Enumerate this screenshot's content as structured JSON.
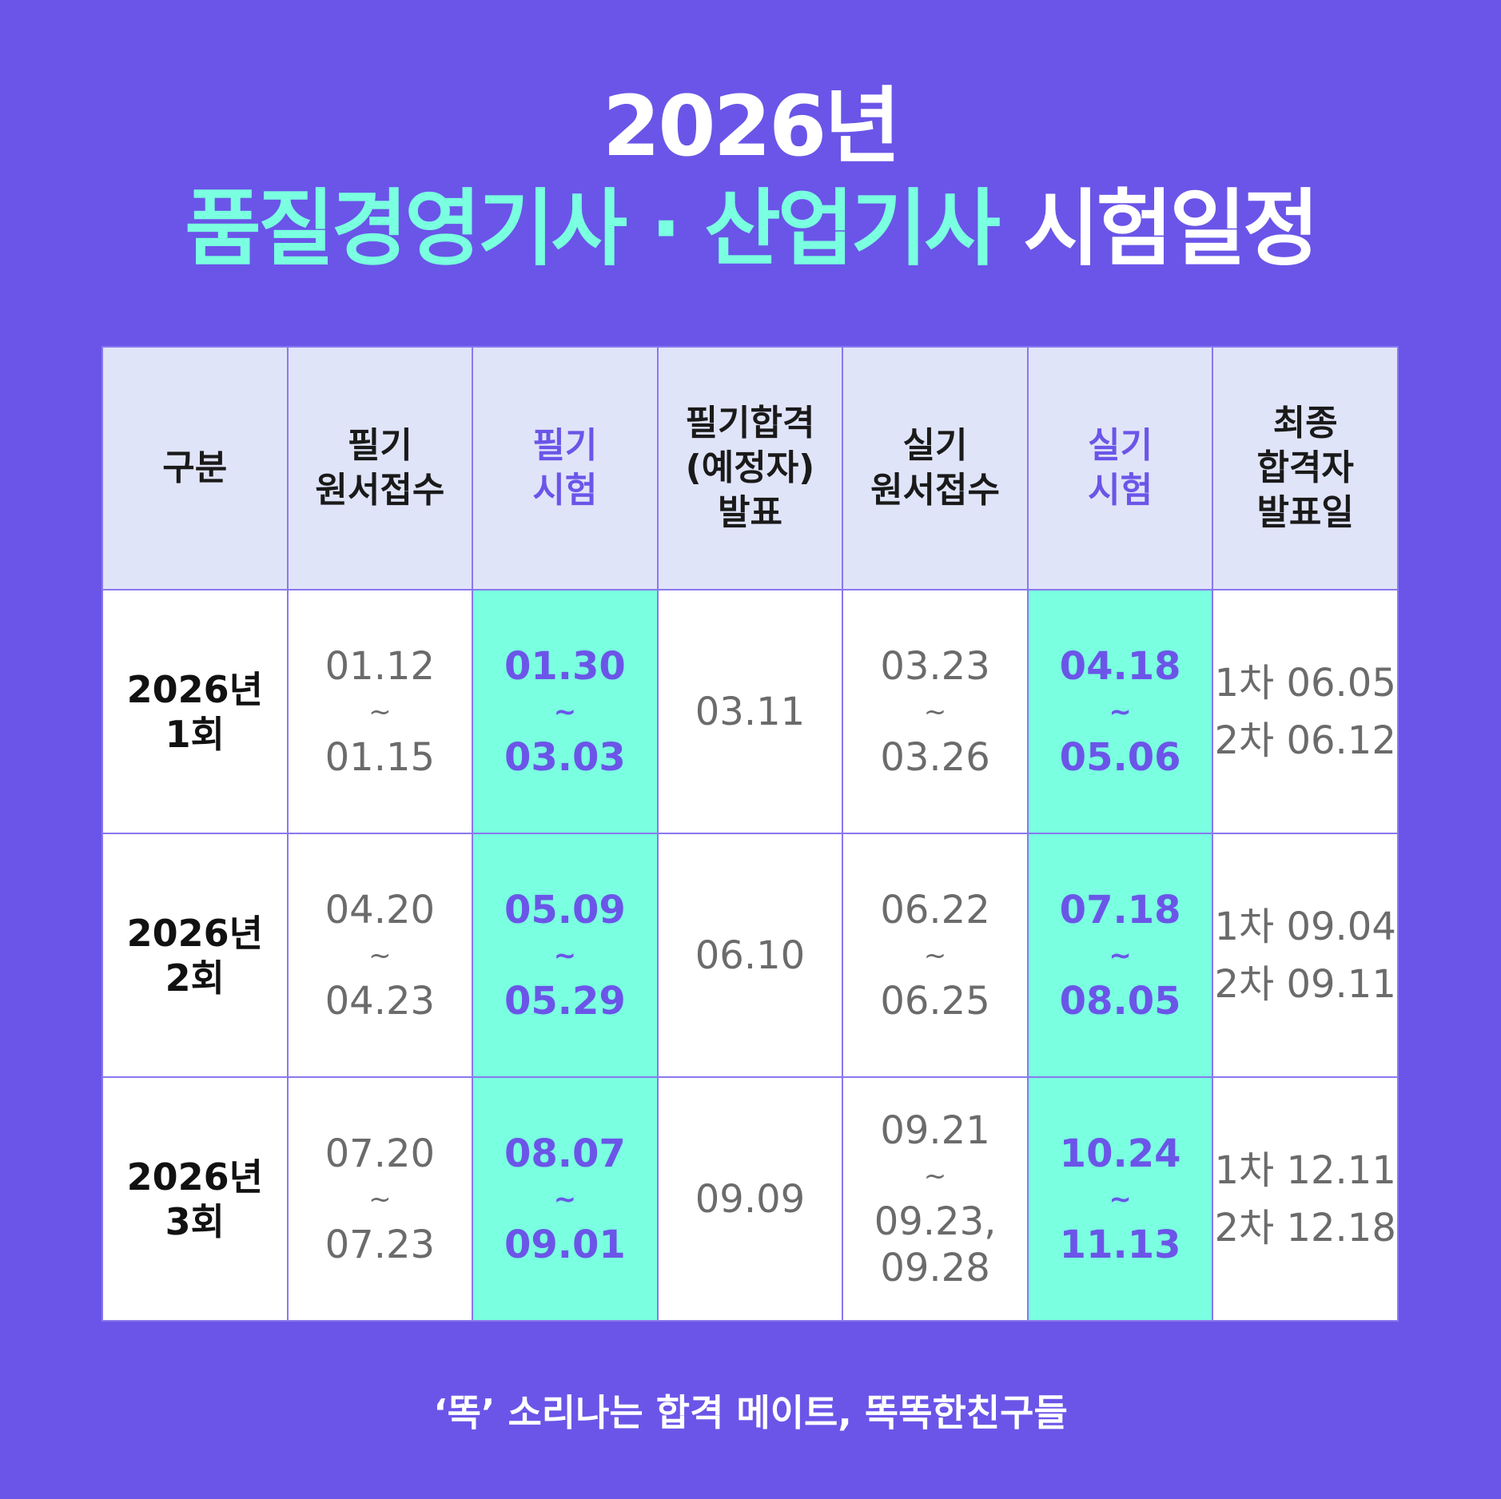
{
  "title": {
    "line1": "2026년",
    "line2_mint": "품질경영기사 · 산업기사",
    "line2_white": "시험일정"
  },
  "table": {
    "headers": [
      {
        "lines": [
          "구분"
        ],
        "highlight": false
      },
      {
        "lines": [
          "필기",
          "원서접수"
        ],
        "highlight": false
      },
      {
        "lines": [
          "필기",
          "시험"
        ],
        "highlight": true
      },
      {
        "lines": [
          "필기합격",
          "(예정자)",
          "발표"
        ],
        "highlight": false
      },
      {
        "lines": [
          "실기",
          "원서접수"
        ],
        "highlight": false
      },
      {
        "lines": [
          "실기",
          "시험"
        ],
        "highlight": true
      },
      {
        "lines": [
          "최종",
          "합격자",
          "발표일"
        ],
        "highlight": false
      }
    ],
    "rows": [
      {
        "round": [
          "2026년",
          "1회"
        ],
        "written_application": [
          "01.12",
          "~",
          "01.15"
        ],
        "written_exam": [
          "01.30",
          "~",
          "03.03"
        ],
        "written_result": [
          "03.11"
        ],
        "practical_application": [
          "03.23",
          "~",
          "03.26"
        ],
        "practical_exam": [
          "04.18",
          "~",
          "05.06"
        ],
        "final_result": [
          "1차 06.05",
          "2차 06.12"
        ]
      },
      {
        "round": [
          "2026년",
          "2회"
        ],
        "written_application": [
          "04.20",
          "~",
          "04.23"
        ],
        "written_exam": [
          "05.09",
          "~",
          "05.29"
        ],
        "written_result": [
          "06.10"
        ],
        "practical_application": [
          "06.22",
          "~",
          "06.25"
        ],
        "practical_exam": [
          "07.18",
          "~",
          "08.05"
        ],
        "final_result": [
          "1차 09.04",
          "2차 09.11"
        ]
      },
      {
        "round": [
          "2026년",
          "3회"
        ],
        "written_application": [
          "07.20",
          "~",
          "07.23"
        ],
        "written_exam": [
          "08.07",
          "~",
          "09.01"
        ],
        "written_result": [
          "09.09"
        ],
        "practical_application": [
          "09.21",
          "~",
          "09.23,",
          "09.28"
        ],
        "practical_exam": [
          "10.24",
          "~",
          "11.13"
        ],
        "final_result": [
          "1차 12.11",
          "2차 12.18"
        ]
      }
    ]
  },
  "footer": "‘똑’ 소리나는 합격 메이트, 똑똑한친구들",
  "colors": {
    "background": "#6a55e8",
    "mint": "#7affe0",
    "header_bg": "#e0e4f8",
    "accent_text": "#6b55e8"
  }
}
